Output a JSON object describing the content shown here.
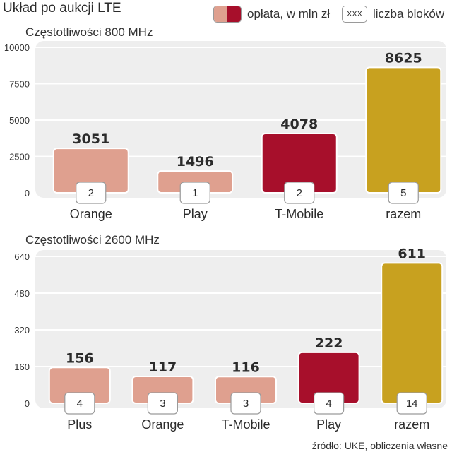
{
  "title": "Układ po aukcji LTE",
  "legend": {
    "fee_label": "opłata, w mln zł",
    "blocks_box": "XXX",
    "blocks_label": "liczba bloków"
  },
  "colors": {
    "operator": "#dfa08f",
    "highlight": "#a70f2b",
    "total": "#c8a11f",
    "panel": "#eeeeee",
    "grid": "#ffffff"
  },
  "source": "źródło: UKE, obliczenia własne",
  "chart_data": [
    {
      "type": "bar",
      "title": "Częstotliwości 800 MHz",
      "categories": [
        "Orange",
        "Play",
        "T-Mobile",
        "razem"
      ],
      "values": [
        3051,
        1496,
        4078,
        8625
      ],
      "blocks": [
        2,
        1,
        2,
        5
      ],
      "bar_colors": [
        "operator",
        "operator",
        "highlight",
        "total"
      ],
      "yticks": [
        0,
        2500,
        5000,
        7500,
        10000
      ],
      "ylim": [
        0,
        10000
      ],
      "xlabel": "",
      "ylabel": ""
    },
    {
      "type": "bar",
      "title": "Częstotliwości 2600 MHz",
      "categories": [
        "Plus",
        "Orange",
        "T-Mobile",
        "Play",
        "razem"
      ],
      "values": [
        156,
        117,
        116,
        222,
        611
      ],
      "blocks": [
        4,
        3,
        3,
        4,
        14
      ],
      "bar_colors": [
        "operator",
        "operator",
        "operator",
        "highlight",
        "total"
      ],
      "yticks": [
        0,
        160,
        320,
        480,
        640
      ],
      "ylim": [
        0,
        640
      ],
      "xlabel": "",
      "ylabel": ""
    }
  ]
}
